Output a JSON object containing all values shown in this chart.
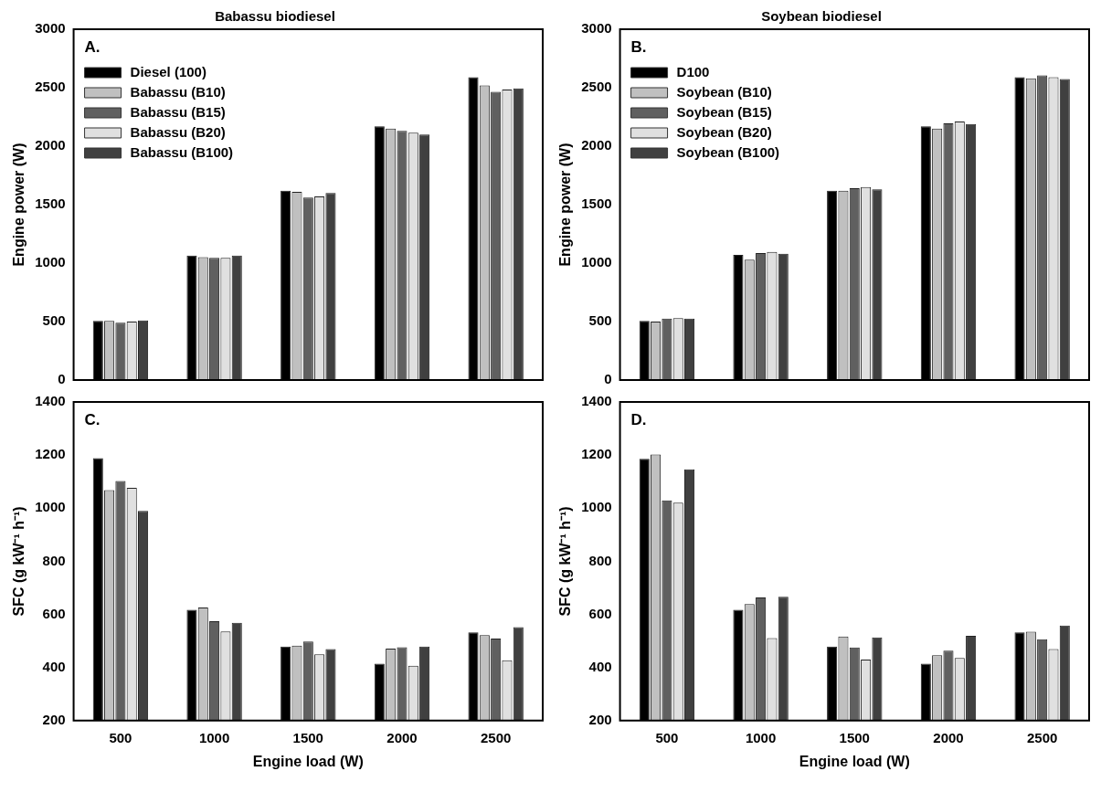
{
  "chart_data": [
    {
      "type": "bar",
      "title": "Babassu biodiesel",
      "ylabel": "Engine power (W)",
      "annotations": [
        "A."
      ],
      "categories": [
        "500",
        "1000",
        "1500",
        "2000",
        "2500"
      ],
      "ylim": [
        0,
        3000
      ],
      "yticks": [
        0,
        500,
        1000,
        1500,
        2000,
        2500,
        3000
      ],
      "tick_labels": "y",
      "legend": "top left",
      "series": [
        {
          "name": "Diesel (100)",
          "color": "#000000",
          "values": [
            505,
            1065,
            1620,
            2170,
            2590
          ]
        },
        {
          "name": "Babassu (B10)",
          "color": "#c0c0c0",
          "values": [
            505,
            1050,
            1610,
            2150,
            2520
          ]
        },
        {
          "name": "Babassu (B15)",
          "color": "#606060",
          "values": [
            490,
            1045,
            1560,
            2130,
            2465
          ]
        },
        {
          "name": "Babassu (B20)",
          "color": "#e0e0e0",
          "values": [
            500,
            1045,
            1570,
            2115,
            2485
          ]
        },
        {
          "name": "Babassu (B100)",
          "color": "#404040",
          "values": [
            510,
            1065,
            1600,
            2100,
            2495
          ]
        }
      ]
    },
    {
      "type": "bar",
      "title": "Soybean biodiesel",
      "ylabel": "Engine power (W)",
      "annotations": [
        "B."
      ],
      "categories": [
        "500",
        "1000",
        "1500",
        "2000",
        "2500"
      ],
      "ylim": [
        0,
        3000
      ],
      "yticks": [
        0,
        500,
        1000,
        1500,
        2000,
        2500,
        3000
      ],
      "tick_labels": "y",
      "legend": "top left",
      "series": [
        {
          "name": "D100",
          "color": "#000000",
          "values": [
            505,
            1070,
            1620,
            2170,
            2590
          ]
        },
        {
          "name": "Soybean (B10)",
          "color": "#c0c0c0",
          "values": [
            500,
            1030,
            1620,
            2150,
            2580
          ]
        },
        {
          "name": "Soybean (B15)",
          "color": "#606060",
          "values": [
            525,
            1085,
            1640,
            2195,
            2605
          ]
        },
        {
          "name": "Soybean (B20)",
          "color": "#e0e0e0",
          "values": [
            530,
            1095,
            1650,
            2210,
            2590
          ]
        },
        {
          "name": "Soybean (B100)",
          "color": "#404040",
          "values": [
            525,
            1080,
            1630,
            2190,
            2575
          ]
        }
      ]
    },
    {
      "type": "bar",
      "ylabel": "SFC (g kW⁻¹ h⁻¹)",
      "xlabel": "Engine load (W)",
      "annotations": [
        "C."
      ],
      "categories": [
        "500",
        "1000",
        "1500",
        "2000",
        "2500"
      ],
      "ylim": [
        200,
        1400
      ],
      "yticks": [
        200,
        400,
        600,
        800,
        1000,
        1200,
        1400
      ],
      "series": [
        {
          "color": "#000000",
          "values": [
            1188,
            617,
            479,
            414,
            532
          ]
        },
        {
          "color": "#c0c0c0",
          "values": [
            1068,
            626,
            482,
            471,
            522
          ]
        },
        {
          "color": "#606060",
          "values": [
            1102,
            574,
            498,
            476,
            509
          ]
        },
        {
          "color": "#e0e0e0",
          "values": [
            1077,
            536,
            450,
            407,
            427
          ]
        },
        {
          "color": "#404040",
          "values": [
            990,
            568,
            469,
            479,
            552
          ]
        }
      ]
    },
    {
      "type": "bar",
      "ylabel": "SFC (g kW⁻¹ h⁻¹)",
      "xlabel": "Engine load (W)",
      "annotations": [
        "D."
      ],
      "categories": [
        "500",
        "1000",
        "1500",
        "2000",
        "2500"
      ],
      "ylim": [
        200,
        1400
      ],
      "yticks": [
        200,
        400,
        600,
        800,
        1000,
        1200,
        1400
      ],
      "series": [
        {
          "color": "#000000",
          "values": [
            1186,
            617,
            479,
            414,
            532
          ]
        },
        {
          "color": "#c0c0c0",
          "values": [
            1202,
            639,
            517,
            446,
            535
          ]
        },
        {
          "color": "#606060",
          "values": [
            1029,
            664,
            475,
            463,
            506
          ]
        },
        {
          "color": "#e0e0e0",
          "values": [
            1021,
            511,
            430,
            436,
            469
          ]
        },
        {
          "color": "#404040",
          "values": [
            1146,
            666,
            513,
            519,
            558
          ]
        }
      ]
    }
  ]
}
